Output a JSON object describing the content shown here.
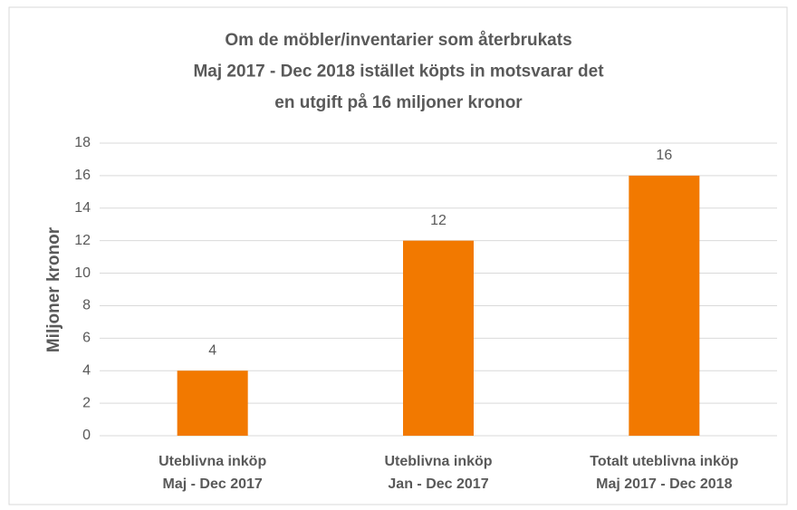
{
  "chart_data": {
    "type": "bar",
    "title": [
      "Om de möbler/inventarier som återbrukats",
      "Maj 2017 - Dec 2018 istället köpts in motsvarar det",
      "en utgift på 16 miljoner kronor"
    ],
    "y_label": "Miljoner  kronor",
    "categories": [
      [
        "Uteblivna inköp",
        "Maj - Dec 2017"
      ],
      [
        "Uteblivna inköp",
        "Jan - Dec 2017"
      ],
      [
        "Totalt uteblivna inköp",
        "Maj 2017 - Dec 2018"
      ]
    ],
    "values": [
      4,
      12,
      16
    ],
    "color": "#f27900",
    "ylim": [
      0,
      18
    ],
    "yticks": [
      0,
      2,
      4,
      6,
      8,
      10,
      12,
      14,
      16,
      18
    ],
    "grid": true
  }
}
